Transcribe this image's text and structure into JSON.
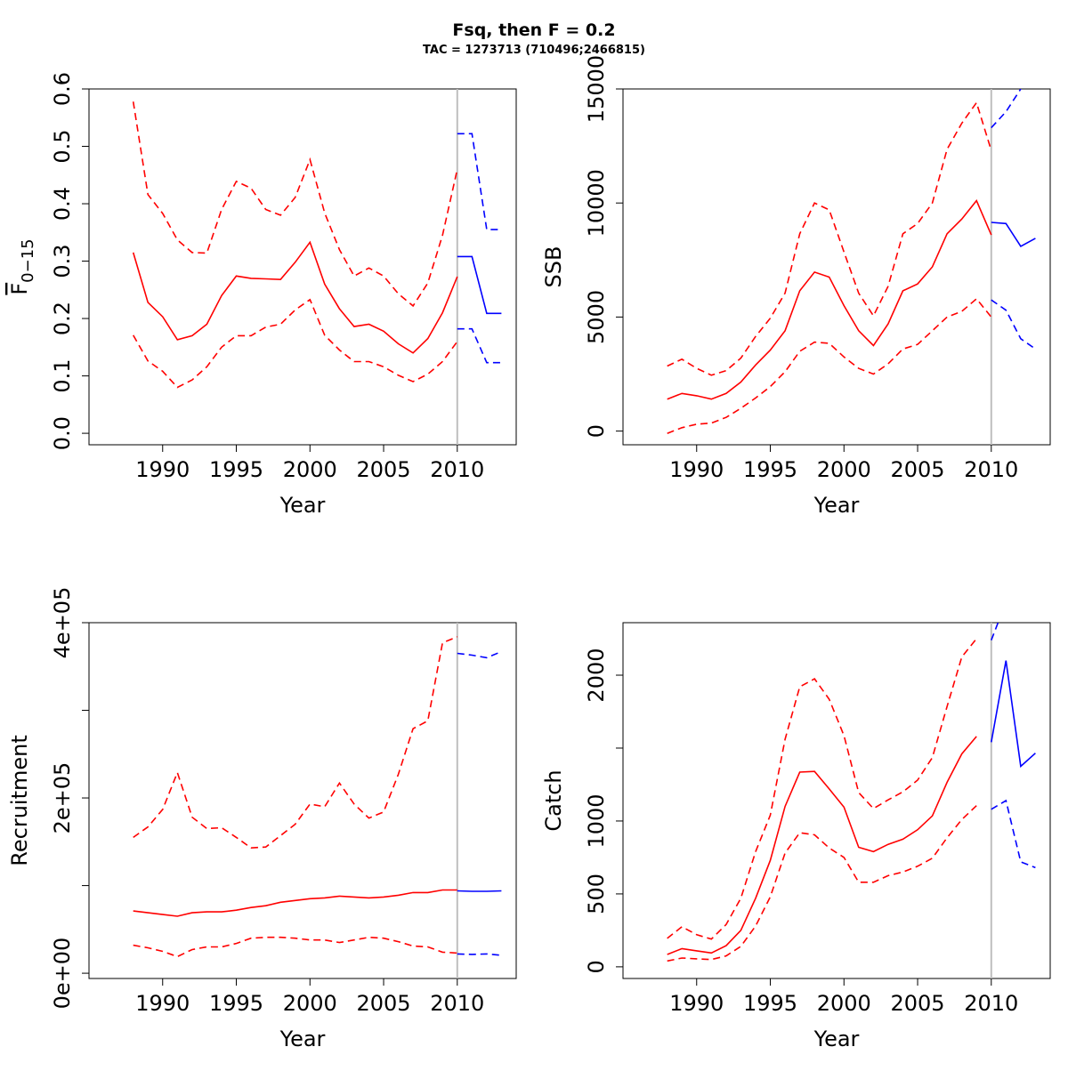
{
  "figure": {
    "title": "Fsq, then F = 0.2",
    "subtitle": "TAC = 1273713 (710496;2466815)"
  },
  "colors": {
    "history": "#ff0000",
    "forecast": "#0000ff",
    "divider": "#bebebe"
  },
  "chart_data": [
    {
      "type": "line",
      "id": "fbar",
      "xlabel": "Year",
      "ylabel": "F0-15",
      "ylabel_main": "F",
      "ylabel_sub": "0−15",
      "xlim": [
        1985,
        2014
      ],
      "ylim": [
        -0.02,
        0.6
      ],
      "xticks": [
        1990,
        1995,
        2000,
        2005,
        2010
      ],
      "xtick_labels": [
        "1990",
        "1995",
        "2000",
        "2005",
        "2010"
      ],
      "yticks": [
        0.0,
        0.1,
        0.2,
        0.3,
        0.4,
        0.5,
        0.6
      ],
      "ytick_labels": [
        "0.0",
        "0.1",
        "0.2",
        "0.3",
        "0.4",
        "0.5",
        "0.6"
      ],
      "divider_x": 2010,
      "series": [
        {
          "role": "history-median",
          "style": "solid",
          "color": "#ff0000",
          "x": [
            1988,
            1989,
            1990,
            1991,
            1992,
            1993,
            1994,
            1995,
            1996,
            1997,
            1998,
            1999,
            2000,
            2001,
            2002,
            2003,
            2004,
            2005,
            2006,
            2007,
            2008,
            2009,
            2010
          ],
          "y": [
            0.315,
            0.228,
            0.203,
            0.163,
            0.17,
            0.19,
            0.24,
            0.274,
            0.27,
            0.269,
            0.268,
            0.298,
            0.333,
            0.26,
            0.217,
            0.186,
            0.19,
            0.178,
            0.156,
            0.14,
            0.165,
            0.21,
            0.273
          ]
        },
        {
          "role": "history-upper",
          "style": "dashed",
          "color": "#ff0000",
          "x": [
            1988,
            1989,
            1990,
            1991,
            1992,
            1993,
            1994,
            1995,
            1996,
            1997,
            1998,
            1999,
            2000,
            2001,
            2002,
            2003,
            2004,
            2005,
            2006,
            2007,
            2008,
            2009,
            2010
          ],
          "y": [
            0.578,
            0.416,
            0.383,
            0.337,
            0.315,
            0.314,
            0.39,
            0.439,
            0.427,
            0.39,
            0.38,
            0.411,
            0.477,
            0.384,
            0.32,
            0.274,
            0.288,
            0.274,
            0.243,
            0.222,
            0.262,
            0.345,
            0.46
          ]
        },
        {
          "role": "history-lower",
          "style": "dashed",
          "color": "#ff0000",
          "x": [
            1988,
            1989,
            1990,
            1991,
            1992,
            1993,
            1994,
            1995,
            1996,
            1997,
            1998,
            1999,
            2000,
            2001,
            2002,
            2003,
            2004,
            2005,
            2006,
            2007,
            2008,
            2009,
            2010
          ],
          "y": [
            0.171,
            0.126,
            0.108,
            0.08,
            0.093,
            0.116,
            0.15,
            0.17,
            0.17,
            0.185,
            0.19,
            0.215,
            0.233,
            0.171,
            0.145,
            0.125,
            0.125,
            0.116,
            0.101,
            0.09,
            0.103,
            0.125,
            0.16
          ]
        },
        {
          "role": "forecast-median",
          "style": "solid",
          "color": "#0000ff",
          "x": [
            2010,
            2011,
            2012,
            2013
          ],
          "y": [
            0.308,
            0.308,
            0.209,
            0.209
          ]
        },
        {
          "role": "forecast-upper",
          "style": "dashed",
          "color": "#0000ff",
          "x": [
            2010,
            2011,
            2012,
            2013
          ],
          "y": [
            0.522,
            0.522,
            0.355,
            0.355
          ]
        },
        {
          "role": "forecast-lower",
          "style": "dashed",
          "color": "#0000ff",
          "x": [
            2010,
            2011,
            2012,
            2013
          ],
          "y": [
            0.182,
            0.182,
            0.123,
            0.123
          ]
        }
      ]
    },
    {
      "type": "line",
      "id": "ssb",
      "xlabel": "Year",
      "ylabel": "SSB",
      "xlim": [
        1985,
        2014
      ],
      "ylim": [
        -600,
        15000
      ],
      "xticks": [
        1990,
        1995,
        2000,
        2005,
        2010
      ],
      "xtick_labels": [
        "1990",
        "1995",
        "2000",
        "2005",
        "2010"
      ],
      "yticks": [
        0,
        5000,
        10000,
        15000
      ],
      "ytick_labels": [
        "0",
        "5000",
        "10000",
        "15000"
      ],
      "divider_x": 2010,
      "series": [
        {
          "role": "history-median",
          "style": "solid",
          "color": "#ff0000",
          "x": [
            1988,
            1989,
            1990,
            1991,
            1992,
            1993,
            1994,
            1995,
            1996,
            1997,
            1998,
            1999,
            2000,
            2001,
            2002,
            2003,
            2004,
            2005,
            2006,
            2007,
            2008,
            2009,
            2010
          ],
          "y": [
            1400,
            1650,
            1550,
            1400,
            1650,
            2150,
            2900,
            3550,
            4400,
            6150,
            6970,
            6750,
            5500,
            4400,
            3750,
            4700,
            6150,
            6450,
            7200,
            8650,
            9300,
            10100,
            8600
          ]
        },
        {
          "role": "history-upper",
          "style": "dashed",
          "color": "#ff0000",
          "x": [
            1988,
            1989,
            1990,
            1991,
            1992,
            1993,
            1994,
            1995,
            1996,
            1997,
            1998,
            1999,
            2000,
            2001,
            2002,
            2003,
            2004,
            2005,
            2006,
            2007,
            2008,
            2009,
            2010
          ],
          "y": [
            2850,
            3150,
            2750,
            2450,
            2650,
            3200,
            4150,
            4950,
            6050,
            8650,
            10000,
            9700,
            7850,
            6050,
            5050,
            6350,
            8650,
            9100,
            10000,
            12350,
            13500,
            14400,
            12300
          ]
        },
        {
          "role": "history-lower",
          "style": "dashed",
          "color": "#ff0000",
          "x": [
            1988,
            1989,
            1990,
            1991,
            1992,
            1993,
            1994,
            1995,
            1996,
            1997,
            1998,
            1999,
            2000,
            2001,
            2002,
            2003,
            2004,
            2005,
            2006,
            2007,
            2008,
            2009,
            2010
          ],
          "y": [
            -100,
            150,
            300,
            350,
            600,
            1000,
            1450,
            1950,
            2600,
            3500,
            3900,
            3850,
            3250,
            2750,
            2500,
            2950,
            3600,
            3800,
            4400,
            5000,
            5250,
            5800,
            5000
          ]
        },
        {
          "role": "forecast-median",
          "style": "solid",
          "color": "#0000ff",
          "x": [
            2010,
            2011,
            2012,
            2013
          ],
          "y": [
            9150,
            9100,
            8100,
            8450
          ]
        },
        {
          "role": "forecast-upper",
          "style": "dashed",
          "color": "#0000ff",
          "x": [
            2010,
            2011,
            2012,
            2013
          ],
          "y": [
            13300,
            14000,
            15000,
            16000
          ]
        },
        {
          "role": "forecast-lower",
          "style": "dashed",
          "color": "#0000ff",
          "x": [
            2010,
            2011,
            2012,
            2013
          ],
          "y": [
            5750,
            5300,
            4050,
            3600
          ]
        }
      ]
    },
    {
      "type": "line",
      "id": "recruitment",
      "xlabel": "Year",
      "ylabel": "Recruitment",
      "xlim": [
        1985,
        2014
      ],
      "ylim": [
        -6000,
        400000
      ],
      "xticks": [
        1990,
        1995,
        2000,
        2005,
        2010
      ],
      "xtick_labels": [
        "1990",
        "1995",
        "2000",
        "2005",
        "2010"
      ],
      "yticks": [
        0,
        100000,
        200000,
        300000,
        400000
      ],
      "ytick_labels": [
        "0e+00",
        "",
        "2e+05",
        "",
        "4e+05"
      ],
      "divider_x": 2010,
      "series": [
        {
          "role": "history-median",
          "style": "solid",
          "color": "#ff0000",
          "x": [
            1988,
            1989,
            1990,
            1991,
            1992,
            1993,
            1994,
            1995,
            1996,
            1997,
            1998,
            1999,
            2000,
            2001,
            2002,
            2003,
            2004,
            2005,
            2006,
            2007,
            2008,
            2009,
            2010
          ],
          "y": [
            71000,
            69000,
            67000,
            65000,
            69000,
            70000,
            70000,
            72000,
            75000,
            77000,
            81000,
            83000,
            85000,
            86000,
            88000,
            87000,
            86000,
            87000,
            89000,
            92000,
            92000,
            95000,
            95000
          ]
        },
        {
          "role": "history-upper",
          "style": "dashed",
          "color": "#ff0000",
          "x": [
            1988,
            1989,
            1990,
            1991,
            1992,
            1993,
            1994,
            1995,
            1996,
            1997,
            1998,
            1999,
            2000,
            2001,
            2002,
            2003,
            2004,
            2005,
            2006,
            2007,
            2008,
            2009,
            2010
          ],
          "y": [
            155000,
            167000,
            187000,
            229000,
            178000,
            165000,
            166000,
            155000,
            143000,
            144000,
            157000,
            170000,
            193000,
            190000,
            217000,
            193000,
            177000,
            184000,
            227000,
            279000,
            288000,
            377000,
            384000
          ]
        },
        {
          "role": "history-lower",
          "style": "dashed",
          "color": "#ff0000",
          "x": [
            1988,
            1989,
            1990,
            1991,
            1992,
            1993,
            1994,
            1995,
            1996,
            1997,
            1998,
            1999,
            2000,
            2001,
            2002,
            2003,
            2004,
            2005,
            2006,
            2007,
            2008,
            2009,
            2010
          ],
          "y": [
            32000,
            29000,
            25000,
            19000,
            27000,
            30000,
            30000,
            34000,
            40000,
            41000,
            41000,
            40000,
            38000,
            38000,
            35000,
            38000,
            41000,
            40000,
            36000,
            31000,
            30000,
            24000,
            23000
          ]
        },
        {
          "role": "forecast-median",
          "style": "solid",
          "color": "#0000ff",
          "x": [
            2010,
            2011,
            2012,
            2013
          ],
          "y": [
            94000,
            93500,
            93500,
            94000
          ]
        },
        {
          "role": "forecast-upper",
          "style": "dashed",
          "color": "#0000ff",
          "x": [
            2010,
            2011,
            2012,
            2013
          ],
          "y": [
            365000,
            363000,
            360000,
            367000
          ]
        },
        {
          "role": "forecast-lower",
          "style": "dashed",
          "color": "#0000ff",
          "x": [
            2010,
            2011,
            2012,
            2013
          ],
          "y": [
            22000,
            21500,
            22000,
            20500
          ]
        }
      ]
    },
    {
      "type": "line",
      "id": "catch",
      "xlabel": "Year",
      "ylabel": "Catch",
      "xlim": [
        1985,
        2014
      ],
      "ylim": [
        -80,
        2360
      ],
      "xticks": [
        1990,
        1995,
        2000,
        2005,
        2010
      ],
      "xtick_labels": [
        "1990",
        "1995",
        "2000",
        "2005",
        "2010"
      ],
      "yticks": [
        0,
        500,
        1000,
        1500,
        2000
      ],
      "ytick_labels": [
        "0",
        "500",
        "1000",
        "",
        "2000"
      ],
      "divider_x": 2010,
      "series": [
        {
          "role": "history-median",
          "style": "solid",
          "color": "#ff0000",
          "x": [
            1988,
            1989,
            1990,
            1991,
            1992,
            1993,
            1994,
            1995,
            1996,
            1997,
            1998,
            1999,
            2000,
            2001,
            2002,
            2003,
            2004,
            2005,
            2006,
            2007,
            2008,
            2009
          ],
          "y": [
            85,
            125,
            110,
            95,
            145,
            250,
            470,
            730,
            1100,
            1335,
            1340,
            1220,
            1095,
            820,
            790,
            840,
            875,
            940,
            1035,
            1265,
            1460,
            1580
          ]
        },
        {
          "role": "history-upper",
          "style": "dashed",
          "color": "#ff0000",
          "x": [
            1988,
            1989,
            1990,
            1991,
            1992,
            1993,
            1994,
            1995,
            1996,
            1997,
            1998,
            1999,
            2000,
            2001,
            2002,
            2003,
            2004,
            2005,
            2006,
            2007,
            2008,
            2009
          ],
          "y": [
            195,
            275,
            220,
            190,
            290,
            470,
            790,
            1040,
            1560,
            1920,
            1975,
            1835,
            1585,
            1195,
            1085,
            1145,
            1200,
            1280,
            1435,
            1785,
            2125,
            2250
          ]
        },
        {
          "role": "history-lower",
          "style": "dashed",
          "color": "#ff0000",
          "x": [
            1988,
            1989,
            1990,
            1991,
            1992,
            1993,
            1994,
            1995,
            1996,
            1997,
            1998,
            1999,
            2000,
            2001,
            2002,
            2003,
            2004,
            2005,
            2006,
            2007,
            2008,
            2009
          ],
          "y": [
            40,
            60,
            55,
            50,
            75,
            140,
            280,
            480,
            780,
            920,
            905,
            815,
            750,
            580,
            580,
            625,
            650,
            690,
            745,
            885,
            1010,
            1105
          ]
        },
        {
          "role": "forecast-median",
          "style": "solid",
          "color": "#0000ff",
          "x": [
            2010,
            2011,
            2012,
            2013
          ],
          "y": [
            1540,
            2100,
            1375,
            1465
          ]
        },
        {
          "role": "forecast-upper",
          "style": "dashed",
          "color": "#0000ff",
          "x": [
            2010,
            2011,
            2012,
            2013
          ],
          "y": [
            2240,
            2500,
            2500,
            2500
          ]
        },
        {
          "role": "forecast-lower",
          "style": "dashed",
          "color": "#0000ff",
          "x": [
            2010,
            2011,
            2012,
            2013
          ],
          "y": [
            1080,
            1140,
            720,
            680
          ]
        }
      ]
    }
  ]
}
